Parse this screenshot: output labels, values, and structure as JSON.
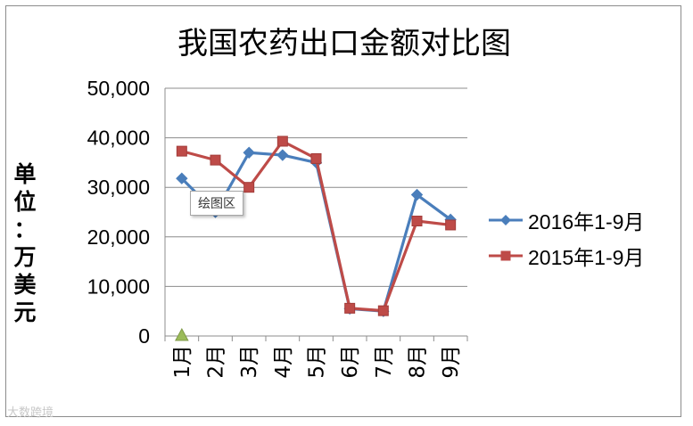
{
  "title": "我国农药出口金额对比图",
  "ylabel_chars": [
    "单",
    "位",
    "：",
    "万",
    "美",
    "元"
  ],
  "tooltip": "绘图区",
  "watermark": "大数跨境",
  "chart_data": {
    "type": "line",
    "title": "我国农药出口金额对比图",
    "ylabel": "单位：万美元",
    "xlabel": "",
    "categories": [
      "1月",
      "2月",
      "3月",
      "4月",
      "5月",
      "6月",
      "7月",
      "8月",
      "9月"
    ],
    "ylim": [
      0,
      50000
    ],
    "yticks": [
      0,
      10000,
      20000,
      30000,
      40000,
      50000
    ],
    "ytick_labels": [
      "0",
      "10,000",
      "20,000",
      "30,000",
      "40,000",
      "50,000"
    ],
    "grid": "horizontal",
    "legend_position": "right",
    "series": [
      {
        "name": "2016年1-9月",
        "color": "#4a7ebb",
        "marker": "diamond",
        "values": [
          31800,
          25000,
          37000,
          36500,
          35000,
          5500,
          5000,
          28500,
          23500
        ]
      },
      {
        "name": "2015年1-9月",
        "color": "#be4b48",
        "marker": "square",
        "values": [
          37300,
          35500,
          30000,
          39300,
          35800,
          5600,
          5100,
          23200,
          22400
        ]
      }
    ],
    "extra_points": [
      {
        "category": "1月",
        "value": 0,
        "color": "#9bbb59",
        "marker": "triangle"
      }
    ]
  }
}
